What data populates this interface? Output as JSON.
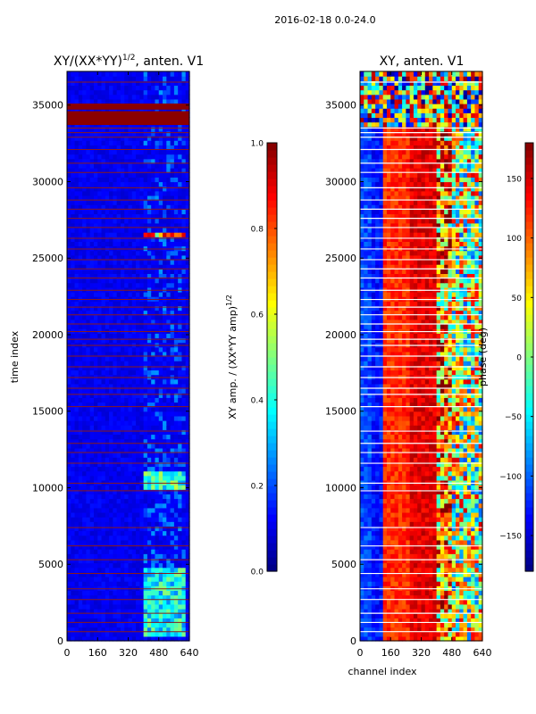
{
  "figure": {
    "suptitle": "2016-02-18 0.0-24.0"
  },
  "colors": {
    "jet": [
      "#000080",
      "#0000ff",
      "#0080ff",
      "#00ffff",
      "#80ff80",
      "#ffff00",
      "#ff8000",
      "#ff0000",
      "#800000"
    ],
    "flag_line": "#8b1a1a",
    "flag_band": "#8b0000",
    "background_low": "#0a1fb0"
  },
  "chart_data": [
    {
      "type": "heatmap",
      "title": "XY/(XX*YY)",
      "title_sup": "1/2",
      "title_suffix": ", anten. V1",
      "xlabel": "",
      "ylabel": "time index",
      "xlim": [
        0,
        640
      ],
      "ylim": [
        0,
        37200
      ],
      "xticks": [
        "0",
        "160",
        "320",
        "480",
        "640"
      ],
      "yticks": [
        "0",
        "5000",
        "10000",
        "15000",
        "20000",
        "25000",
        "30000",
        "35000"
      ],
      "colorbar": {
        "label": "XY amp. / (XX*YY amp)",
        "label_sup": "1/2",
        "range": [
          0.0,
          1.0
        ],
        "ticks": [
          "0.0",
          "0.2",
          "0.4",
          "0.6",
          "0.8",
          "1.0"
        ]
      },
      "flagged_rows": [
        600,
        1200,
        1800,
        2700,
        3400,
        4400,
        5300,
        6200,
        7400,
        9800,
        10300,
        11600,
        12300,
        12900,
        13700,
        15300,
        16100,
        16500,
        17200,
        17900,
        18600,
        19300,
        19700,
        20200,
        20700,
        21300,
        21800,
        22300,
        22900,
        23700,
        24300,
        24900,
        25600,
        26300,
        27000,
        27600,
        28200,
        28800,
        29600,
        30600,
        31200,
        32100,
        32900,
        33200,
        33500,
        36500
      ],
      "flagged_bands": [
        [
          33700,
          34600
        ],
        [
          34700,
          35100
        ]
      ],
      "hot_regions": [
        {
          "t0": 300,
          "t1": 4800,
          "c0": 400,
          "c1": 620,
          "level": 0.45
        },
        {
          "t0": 9900,
          "t1": 11000,
          "c0": 400,
          "c1": 620,
          "level": 0.5
        },
        {
          "t0": 26300,
          "t1": 26600,
          "c0": 400,
          "c1": 620,
          "level": 0.85
        }
      ]
    },
    {
      "type": "heatmap",
      "title": "XY, anten. V1",
      "xlabel": "channel index",
      "ylabel": "",
      "xlim": [
        0,
        640
      ],
      "ylim": [
        0,
        37200
      ],
      "xticks": [
        "0",
        "160",
        "320",
        "480",
        "640"
      ],
      "yticks": [
        "0",
        "5000",
        "10000",
        "15000",
        "20000",
        "25000",
        "30000",
        "35000"
      ],
      "colorbar": {
        "label": "phase (deg)",
        "range": [
          -180,
          180
        ],
        "ticks": [
          "−150",
          "−100",
          "−50",
          "0",
          "50",
          "100",
          "150"
        ],
        "tick_values": [
          -150,
          -100,
          -50,
          0,
          50,
          100,
          150
        ]
      },
      "flagged_rows": [
        600,
        1200,
        1800,
        2700,
        3400,
        4400,
        5300,
        6200,
        7400,
        9800,
        10300,
        11600,
        12300,
        12900,
        13700,
        15300,
        16100,
        16500,
        17200,
        17900,
        18600,
        19300,
        19700,
        20200,
        20700,
        21300,
        21800,
        22300,
        22900,
        23700,
        24300,
        24900,
        25600,
        26300,
        27000,
        27600,
        28200,
        28800,
        29600,
        30600,
        31200,
        32100,
        32900,
        33200,
        33500,
        36500
      ],
      "phase_bands": [
        {
          "c0": 0,
          "c1": 60,
          "phase": -110
        },
        {
          "c0": 60,
          "c1": 130,
          "phase": -130
        },
        {
          "c0": 130,
          "c1": 260,
          "phase": 120
        },
        {
          "c0": 260,
          "c1": 400,
          "phase": 145
        },
        {
          "c0": 400,
          "c1": 480,
          "phase": 80
        },
        {
          "c0": 480,
          "c1": 640,
          "phase": 20
        }
      ]
    }
  ]
}
